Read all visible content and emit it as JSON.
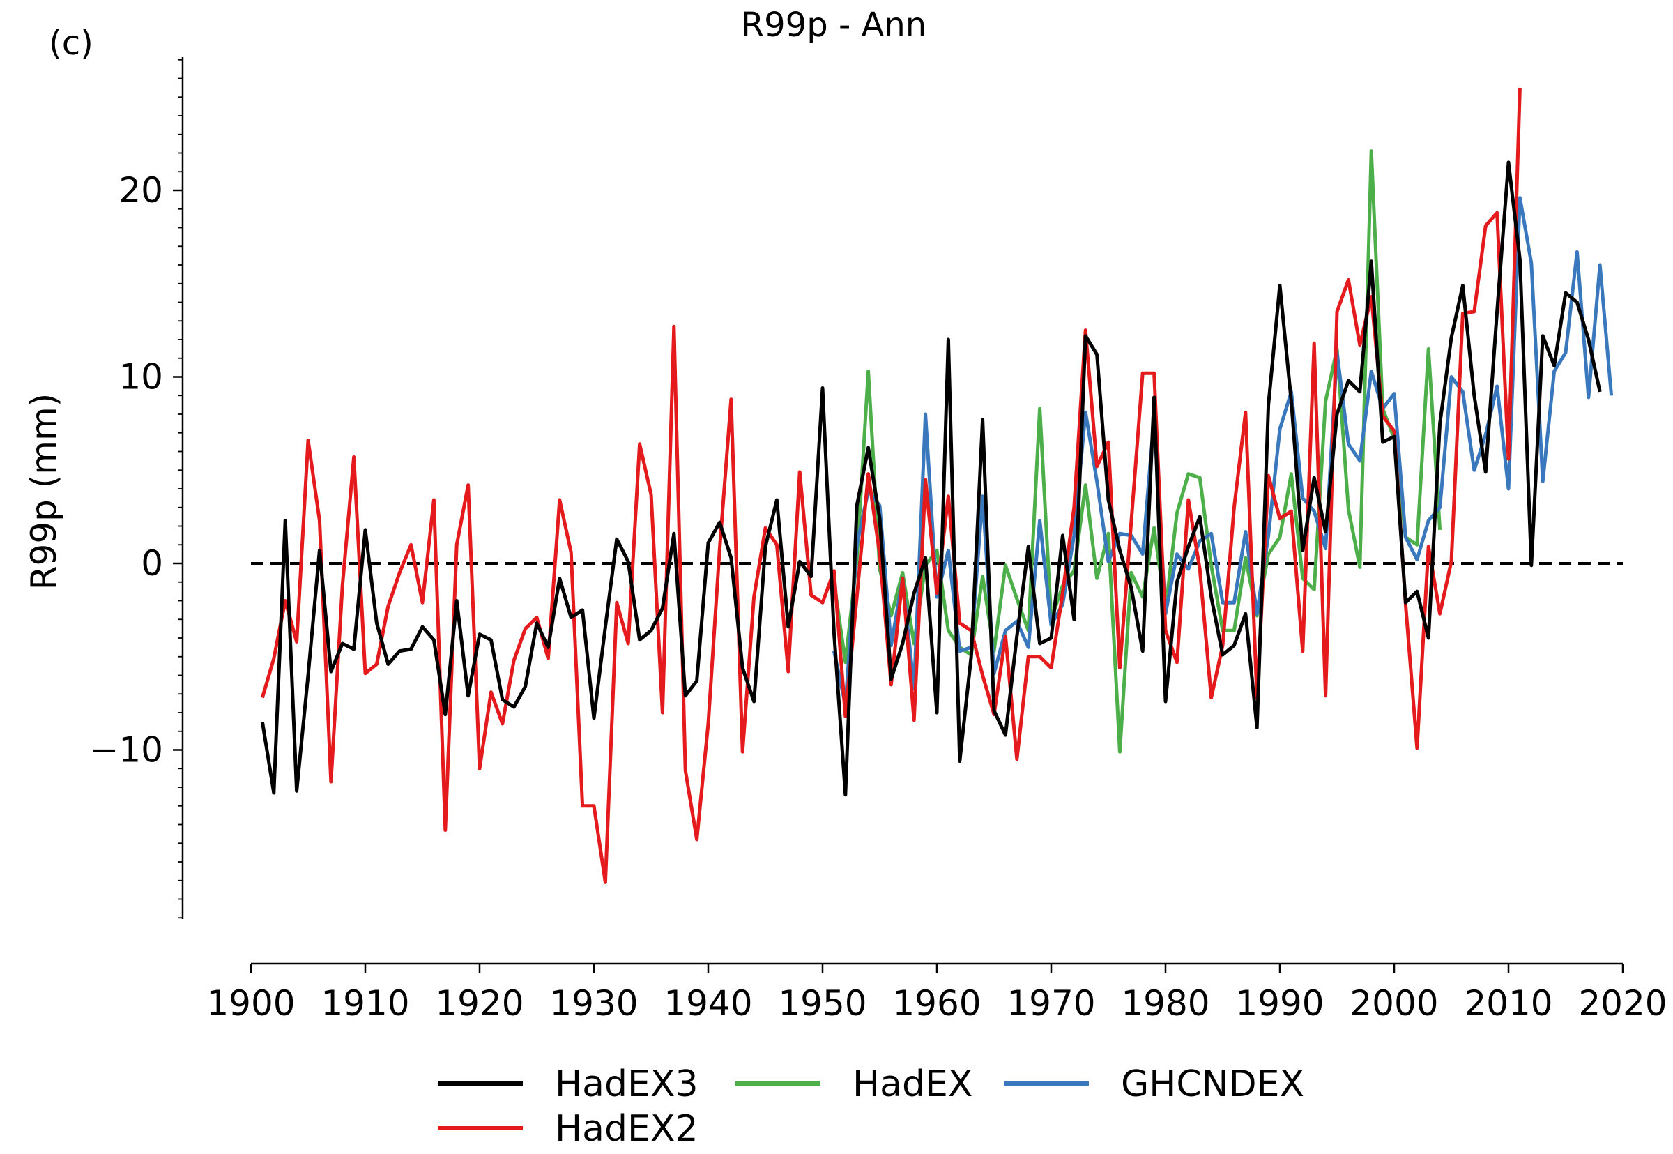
{
  "panel_label": "(c)",
  "chart_data": {
    "type": "line",
    "title": "R99p - Ann",
    "xlabel": "",
    "ylabel": "R99p (mm)",
    "xlim": [
      1900,
      2020
    ],
    "ylim": [
      -19,
      27
    ],
    "x_ticks": [
      1900,
      1910,
      1920,
      1930,
      1940,
      1950,
      1960,
      1970,
      1980,
      1990,
      2000,
      2010,
      2020
    ],
    "y_ticks": [
      -10,
      0,
      10,
      20
    ],
    "y_tick_labels": [
      "−10",
      "0",
      "10",
      "20"
    ],
    "zero_line": true,
    "grid": false,
    "legend_position": "bottom",
    "series": [
      {
        "name": "HadEX3",
        "color": "#000000",
        "start": 1901,
        "values": [
          -8.5,
          -12.3,
          2.3,
          -12.2,
          -6,
          0.7,
          -5.8,
          -4.3,
          -4.6,
          1.8,
          -3.2,
          -5.4,
          -4.7,
          -4.6,
          -3.4,
          -4.1,
          -8.1,
          -2,
          -7.1,
          -3.8,
          -4.1,
          -7.3,
          -7.7,
          -6.6,
          -3.2,
          -4.5,
          -0.8,
          -2.9,
          -2.5,
          -8.3,
          -3.4,
          1.3,
          0.1,
          -4.1,
          -3.6,
          -2.4,
          1.6,
          -7.1,
          -6.3,
          1.1,
          2.2,
          0.3,
          -5.6,
          -7.4,
          0.9,
          3.4,
          -3.4,
          0.1,
          -0.7,
          9.4,
          -3.7,
          -12.4,
          3.1,
          6.2,
          2.4,
          -6.2,
          -4.3,
          -1.6,
          0.3,
          -8,
          12,
          -10.6,
          -5,
          7.7,
          -7.9,
          -9.2,
          -3.9,
          0.9,
          -4.3,
          -4,
          1.5,
          -3,
          12.2,
          11.2,
          3.4,
          0.7,
          -1.3,
          -4.7,
          8.9,
          -7.4,
          -1,
          0.9,
          2.5,
          -1.8,
          -4.9,
          -4.4,
          -2.7,
          -8.8,
          8.5,
          14.9,
          8.7,
          0.7,
          4.6,
          1.7,
          8,
          9.8,
          9.2,
          16.2,
          6.5,
          6.8,
          -2.1,
          -1.5,
          -4,
          7.5,
          12.1,
          14.9,
          9,
          4.9,
          13.5,
          21.5,
          16.3,
          -0.1,
          12.2,
          10.6,
          14.5,
          14,
          12,
          9.2
        ]
      },
      {
        "name": "HadEX2",
        "color": "#e41a1c",
        "start": 1901,
        "values": [
          -7.2,
          -5.1,
          -2,
          -4.2,
          6.6,
          2.3,
          -11.7,
          -1.2,
          5.7,
          -5.9,
          -5.4,
          -2.3,
          -0.5,
          1,
          -2.1,
          3.4,
          -14.3,
          1,
          4.2,
          -11,
          -6.9,
          -8.6,
          -5.2,
          -3.5,
          -2.9,
          -5.1,
          3.4,
          0.6,
          -13,
          -13,
          -17.1,
          -2.1,
          -4.3,
          6.4,
          3.7,
          -8,
          12.7,
          -11.1,
          -14.8,
          -8.6,
          0.8,
          8.8,
          -10.1,
          -1.8,
          1.9,
          1,
          -5.8,
          4.9,
          -1.7,
          -2.1,
          -0.4,
          -8.2,
          -1.8,
          4.8,
          0.5,
          -6.5,
          -0.8,
          -8.4,
          4.5,
          -1.6,
          3.6,
          -3.2,
          -3.6,
          -6,
          -8.1,
          -3.9,
          -10.5,
          -5,
          -5,
          -5.6,
          -1.6,
          3,
          12.5,
          5.2,
          6.5,
          -5.6,
          2.2,
          10.2,
          10.2,
          -3.6,
          -5.3,
          3.4,
          -0.3,
          -7.2,
          -4.4,
          3,
          8.1,
          -7.2,
          4.7,
          2.4,
          2.8,
          -4.7,
          11.8,
          -7.1,
          13.5,
          15.2,
          11.7,
          14.3,
          7.9,
          7.1,
          -2.2,
          -9.9,
          0.9,
          -2.7,
          0.1,
          13.4,
          13.5,
          18.1,
          18.8,
          5.6,
          25.5
        ]
      },
      {
        "name": "HadEX",
        "color": "#4daf4a",
        "start": 1951,
        "values": [
          -1,
          -5.3,
          0.2,
          10.3,
          -0.3,
          -2.8,
          -0.5,
          -4.3,
          -0.1,
          0.7,
          -3.6,
          -4.5,
          -4.9,
          -0.7,
          -4.7,
          -0.1,
          -1.9,
          -3.6,
          8.3,
          -3,
          -1.2,
          -0.4,
          4.2,
          -0.8,
          1.6,
          -10.1,
          -0.5,
          -1.8,
          1.9,
          -2.5,
          2.7,
          4.8,
          4.6,
          -0.1,
          -3.6,
          -3.6,
          0.3,
          -2.8,
          0.5,
          1.4,
          4.8,
          -0.8,
          -1.4,
          8.7,
          11.5,
          2.9,
          -0.2,
          22.1,
          8.3,
          6.7,
          1.4,
          1,
          11.5,
          1.8
        ]
      },
      {
        "name": "GHCNDEX",
        "color": "#3a78bd",
        "start": 1951,
        "values": [
          -4.7,
          -7.6,
          1,
          3.9,
          3.1,
          -4.4,
          -0.8,
          -6.7,
          8,
          -1.8,
          0.7,
          -4.7,
          -4.5,
          3.6,
          -5.9,
          -3.6,
          -3.1,
          -4.5,
          2.3,
          -3.3,
          -2.2,
          1.5,
          8.1,
          4.4,
          0.1,
          1.6,
          1.5,
          0.5,
          7.8,
          -2.7,
          0.5,
          -0.3,
          1.2,
          1.6,
          -2.1,
          -2.1,
          1.7,
          -2.7,
          1.5,
          7.2,
          9.2,
          3.5,
          2.8,
          0.8,
          11.3,
          6.4,
          5.5,
          10.3,
          8.3,
          9.1,
          1.4,
          0.2,
          2.3,
          3,
          10,
          9.2,
          5,
          6.9,
          9.5,
          4,
          19.6,
          16.1,
          4.4,
          10.3,
          11.3,
          16.7,
          8.9,
          16,
          9
        ]
      }
    ]
  }
}
